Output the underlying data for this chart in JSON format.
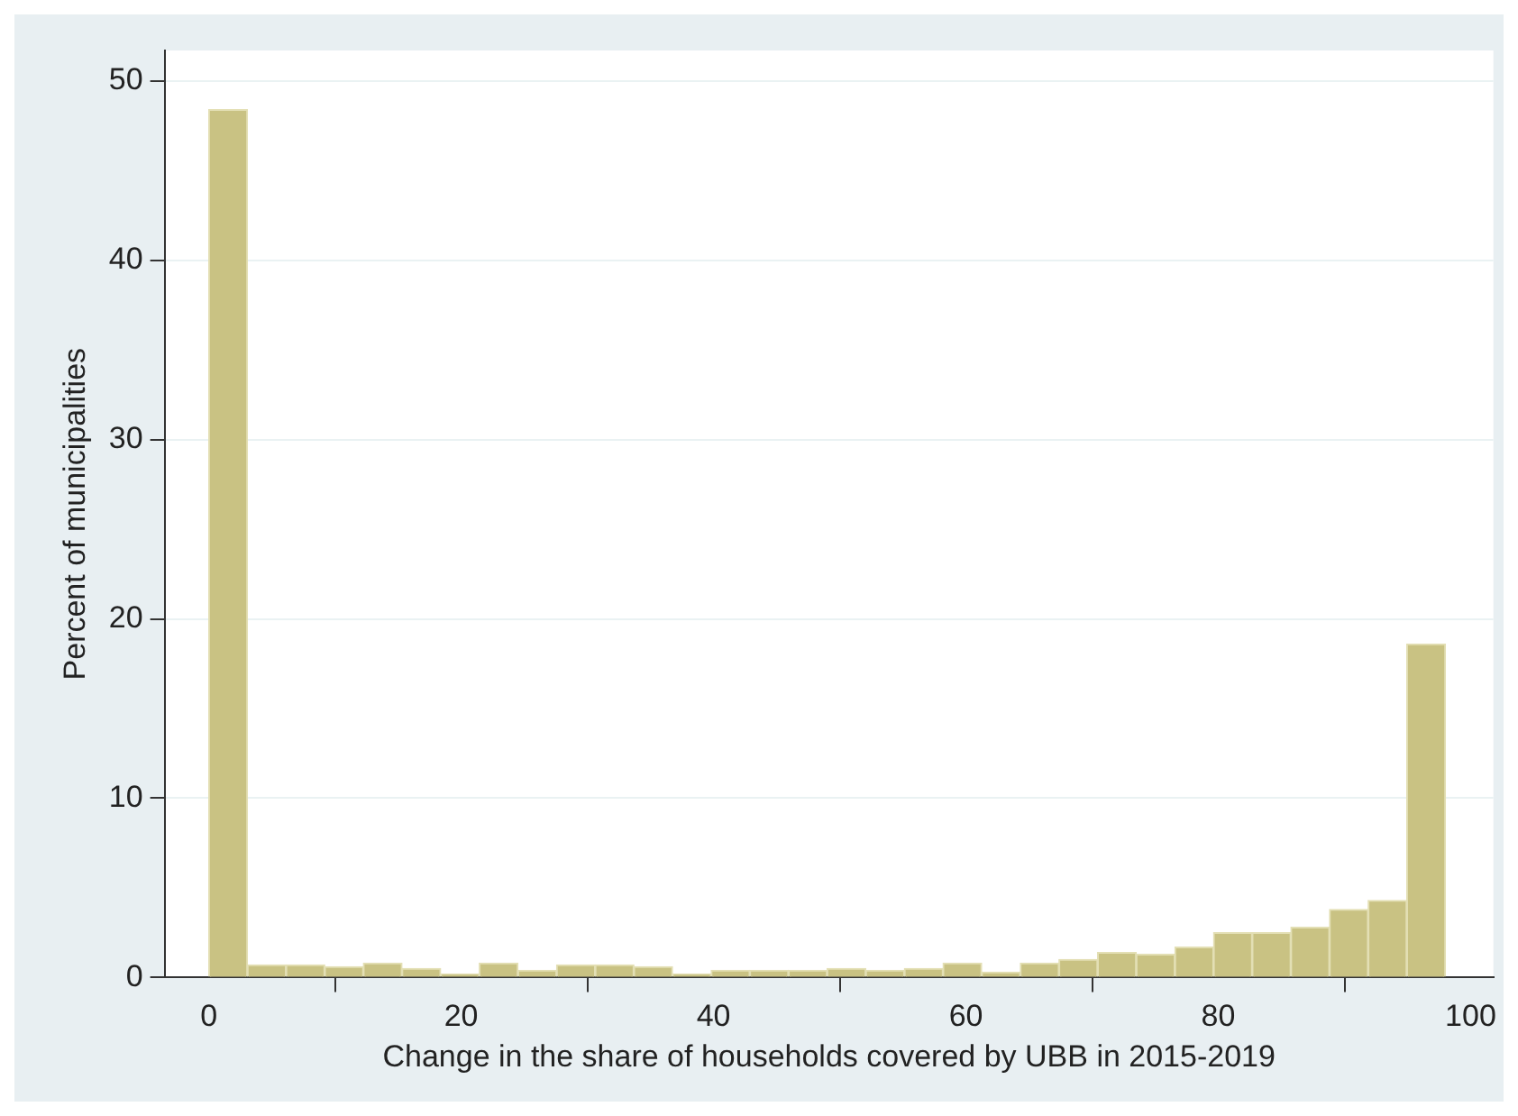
{
  "chart_data": {
    "type": "histogram",
    "xlabel": "Change in the share of households covered by UBB in 2015-2019",
    "ylabel": "Percent of municipalities",
    "bins": [
      0,
      3.0625,
      6.125,
      9.1875,
      12.25,
      15.3125,
      18.375,
      21.4375,
      24.5,
      27.5625,
      30.625,
      33.6875,
      36.75,
      39.8125,
      42.875,
      45.9375,
      49,
      52.0625,
      55.125,
      58.1875,
      61.25,
      64.3125,
      67.375,
      70.4375,
      73.5,
      76.5625,
      79.625,
      82.6875,
      85.75,
      88.8125,
      91.875,
      94.9375,
      98
    ],
    "values": [
      48.4,
      0.7,
      0.7,
      0.6,
      0.8,
      0.5,
      0.2,
      0.8,
      0.4,
      0.7,
      0.7,
      0.6,
      0.2,
      0.4,
      0.4,
      0.4,
      0.5,
      0.4,
      0.5,
      0.8,
      0.3,
      0.8,
      1.0,
      1.4,
      1.3,
      1.7,
      2.5,
      2.5,
      2.8,
      3.8,
      4.3,
      18.6
    ],
    "color": "#c9c283",
    "xlim": [
      -3.5,
      101.8
    ],
    "ylim": [
      0,
      51.7
    ],
    "xticks": [
      0,
      20,
      40,
      60,
      80,
      100
    ],
    "yticks": [
      0,
      10,
      20,
      30,
      40,
      50
    ],
    "grid": "y"
  }
}
